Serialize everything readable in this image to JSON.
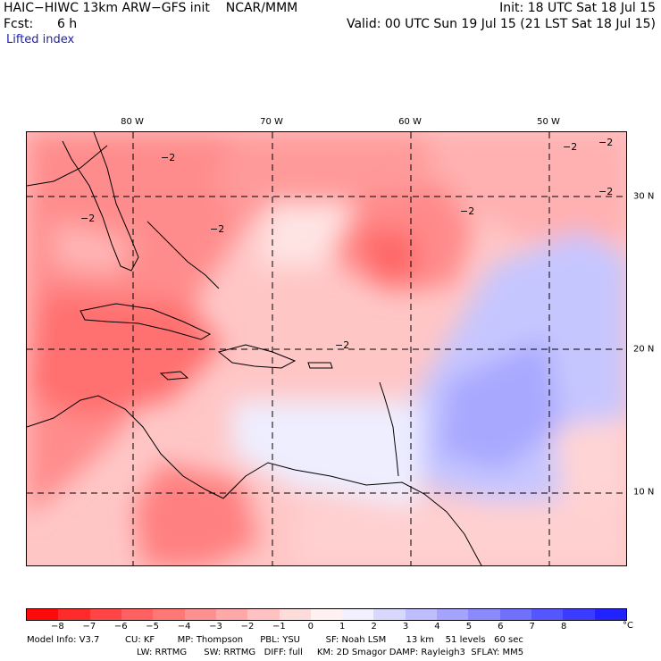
{
  "header": {
    "title": "HAIC−HIWC 13km ARW−GFS init    NCAR/MMM",
    "forecast": "Fcst:      6 h",
    "init": "Init: 18 UTC Sat 18 Jul 15",
    "valid": "Valid: 00 UTC Sun 19 Jul 15 (21 LST Sat 18 Jul 15)",
    "variable": "Lifted index"
  },
  "map": {
    "lon_labels": [
      "80 W",
      "70 W",
      "60 W",
      "50 W"
    ],
    "lat_labels": [
      "30 N",
      "20 N",
      "10 N"
    ],
    "contour_label": "−2"
  },
  "colorbar": {
    "colors": [
      "#ff0a0a",
      "#ff2a2a",
      "#ff4646",
      "#ff6060",
      "#ff7878",
      "#ff9090",
      "#ffa8a8",
      "#ffc2c2",
      "#ffdcdc",
      "#fff2f2",
      "#f2f2ff",
      "#d8d8ff",
      "#bebeff",
      "#a4a4ff",
      "#8a8aff",
      "#7070ff",
      "#5656ff",
      "#3c3cff",
      "#2222ff"
    ],
    "ticks": [
      "−8",
      "−7",
      "−6",
      "−5",
      "−4",
      "−3",
      "−2",
      "−1",
      "0",
      "1",
      "2",
      "3",
      "4",
      "5",
      "6",
      "7",
      "8"
    ],
    "unit": "°C"
  },
  "model_info": {
    "line1": "Model Info: V3.7         CU: KF        MP: Thompson      PBL: YSU         SF: Noah LSM       13 km    51 levels   60 sec",
    "line2": "LW: RRTMG      SW: RRTMG   DIFF: full     KM: 2D Smagor DAMP: Rayleigh3  SFLAY: MM5"
  }
}
